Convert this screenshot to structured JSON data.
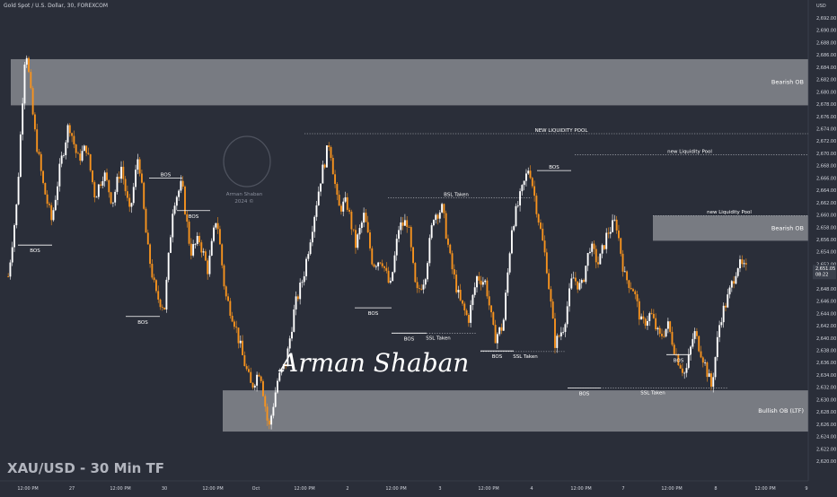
{
  "header": {
    "symbol_title": "Gold Spot / U.S. Dollar, 30, FOREXCOM"
  },
  "currency": "USD",
  "watermark_title": "XAU/USD - 30 Min TF",
  "signature": "Arman Shaban",
  "logo_caption": [
    "Arman Shaban",
    "2024 ©"
  ],
  "price_tag": {
    "price": "2,651.05",
    "countdown": "08:22"
  },
  "colors": {
    "background": "#2a2e39",
    "up": "#ffffff",
    "down": "#f7931e",
    "zone": "#8a8c93",
    "text": "#d1d4dc"
  },
  "chart_data": {
    "type": "candlestick",
    "ylim": [
      2619,
      2694
    ],
    "y_ticks": [
      "2,620.00",
      "2,622.00",
      "2,624.00",
      "2,626.00",
      "2,628.00",
      "2,630.00",
      "2,632.00",
      "2,634.00",
      "2,636.00",
      "2,638.00",
      "2,640.00",
      "2,642.00",
      "2,644.00",
      "2,646.00",
      "2,648.00",
      "2,650.00",
      "2,652.00",
      "2,654.00",
      "2,656.00",
      "2,658.00",
      "2,660.00",
      "2,662.00",
      "2,664.00",
      "2,666.00",
      "2,668.00",
      "2,670.00",
      "2,672.00",
      "2,674.00",
      "2,676.00",
      "2,678.00",
      "2,680.00",
      "2,682.00",
      "2,684.00",
      "2,686.00",
      "2,688.00",
      "2,690.00",
      "2,692.00"
    ],
    "x_ticks": [
      "12:00 PM",
      "27",
      "12:00 PM",
      "30",
      "12:00 PM",
      "Oct",
      "12:00 PM",
      "2",
      "12:00 PM",
      "3",
      "12:00 PM",
      "4",
      "12:00 PM",
      "7",
      "12:00 PM",
      "8",
      "12:00 PM",
      "9"
    ],
    "path": [
      2650,
      2662,
      2688,
      2674,
      2665,
      2659,
      2668,
      2675,
      2669,
      2671,
      2663,
      2667,
      2662,
      2668,
      2660,
      2670,
      2655,
      2647,
      2645,
      2662,
      2665,
      2654,
      2656,
      2651,
      2660,
      2647,
      2643,
      2637,
      2632,
      2635,
      2625,
      2633,
      2636,
      2645,
      2650,
      2658,
      2666,
      2672,
      2661,
      2662,
      2655,
      2660,
      2652,
      2653,
      2648,
      2658,
      2659,
      2647,
      2650,
      2660,
      2661,
      2652,
      2646,
      2643,
      2650,
      2649,
      2640,
      2642,
      2658,
      2663,
      2668,
      2660,
      2652,
      2639,
      2642,
      2650,
      2648,
      2655,
      2652,
      2657,
      2659,
      2650,
      2648,
      2642,
      2644,
      2640,
      2642,
      2637,
      2634,
      2641,
      2637,
      2632,
      2643,
      2647,
      2652,
      2651
    ],
    "series": [
      {
        "values_from": "path"
      }
    ],
    "zones": [
      {
        "label": "Bearish OB",
        "y0": 2677.8,
        "y1": 2685.3
      },
      {
        "label": "Bearish OB",
        "y0": 2655.8,
        "y1": 2659.9
      },
      {
        "label": "Bullish OB (LTF)",
        "y0": 2624.8,
        "y1": 2631.5
      }
    ],
    "levels": [
      {
        "label": "NEW LIQUIDITY POOL",
        "y": 2673.2,
        "style": "dotted"
      },
      {
        "label": "new Liquidity Pool",
        "y": 2669.8,
        "style": "dotted"
      },
      {
        "label": "new Liquidity Pool",
        "y": 2659.9,
        "style": "dotted"
      },
      {
        "label": "BSL Taken",
        "y": 2662.8,
        "style": "dotted"
      },
      {
        "label": "SSL Taken",
        "y": 2640.8,
        "style": "dotted"
      },
      {
        "label": "SSL Taken",
        "y": 2637.8,
        "style": "dotted"
      },
      {
        "label": "SSL Taken",
        "y": 2631.9,
        "style": "dotted"
      }
    ],
    "bos": [
      {
        "label": "BOS",
        "y": 2655.1
      },
      {
        "label": "BOS",
        "y": 2666.0
      },
      {
        "label": "BOS",
        "y": 2660.7
      },
      {
        "label": "BOS",
        "y": 2643.5
      },
      {
        "label": "BOS",
        "y": 2644.9
      },
      {
        "label": "BOS",
        "y": 2640.8
      },
      {
        "label": "BOS",
        "y": 2637.9
      },
      {
        "label": "BOS",
        "y": 2667.2
      },
      {
        "label": "BOS",
        "y": 2631.9
      },
      {
        "label": "BOS",
        "y": 2637.3
      }
    ]
  }
}
